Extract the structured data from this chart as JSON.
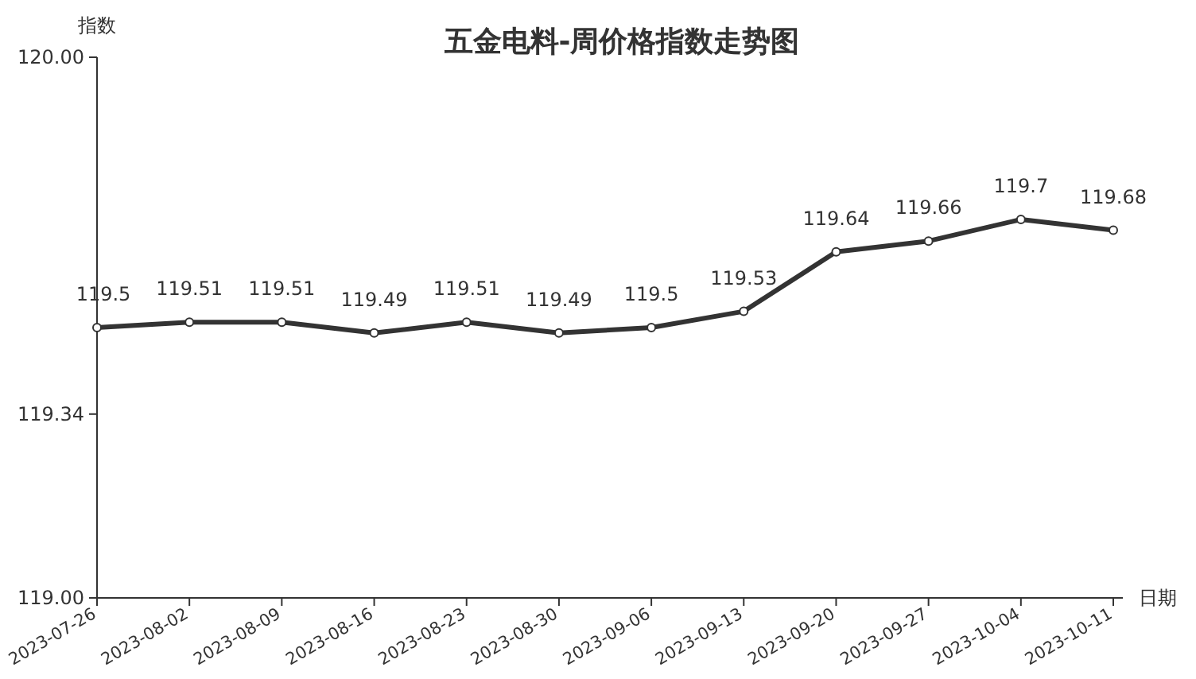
{
  "chart_data": {
    "type": "line",
    "title": "五金电料-周价格指数走势图",
    "xlabel": "日期",
    "ylabel": "指数",
    "categories": [
      "2023-07-26",
      "2023-08-02",
      "2023-08-09",
      "2023-08-16",
      "2023-08-23",
      "2023-08-30",
      "2023-09-06",
      "2023-09-13",
      "2023-09-20",
      "2023-09-27",
      "2023-10-04",
      "2023-10-11"
    ],
    "series": [
      {
        "color": "#333333",
        "values": [
          119.5,
          119.51,
          119.51,
          119.49,
          119.51,
          119.49,
          119.5,
          119.53,
          119.64,
          119.66,
          119.7,
          119.68
        ]
      }
    ],
    "ylim": [
      119,
      120
    ],
    "yticks": [
      {
        "value": 119,
        "label": "119.00"
      },
      {
        "value": 119.34,
        "label": "119.34"
      },
      {
        "value": 120,
        "label": "120.00"
      }
    ],
    "data_labels": true,
    "marker": "circle",
    "line_style": "solid",
    "grid": false
  }
}
